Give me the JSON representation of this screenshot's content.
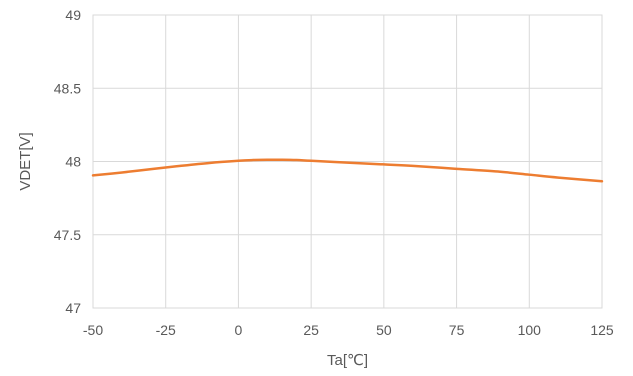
{
  "chart_data": {
    "type": "line",
    "title": "",
    "xlabel": "Ta[℃]",
    "ylabel": "VDET[V]",
    "xlim": [
      -50,
      125
    ],
    "ylim": [
      47,
      49
    ],
    "xticks": [
      -50,
      -25,
      0,
      25,
      50,
      75,
      100,
      125
    ],
    "yticks": [
      47,
      47.5,
      48,
      48.5,
      49
    ],
    "ytick_labels": [
      "47",
      "47.5",
      "48",
      "48.5",
      "49"
    ],
    "grid": true,
    "legend": "none",
    "series": [
      {
        "color": "#ed7d31",
        "x": [
          -50,
          -40,
          -30,
          -20,
          -10,
          0,
          5,
          10,
          15,
          20,
          25,
          40,
          50,
          60,
          75,
          90,
          100,
          110,
          125
        ],
        "y": [
          47.905,
          47.925,
          47.948,
          47.97,
          47.99,
          48.005,
          48.01,
          48.012,
          48.012,
          48.01,
          48.005,
          47.99,
          47.98,
          47.97,
          47.95,
          47.93,
          47.91,
          47.89,
          47.865
        ]
      }
    ]
  }
}
